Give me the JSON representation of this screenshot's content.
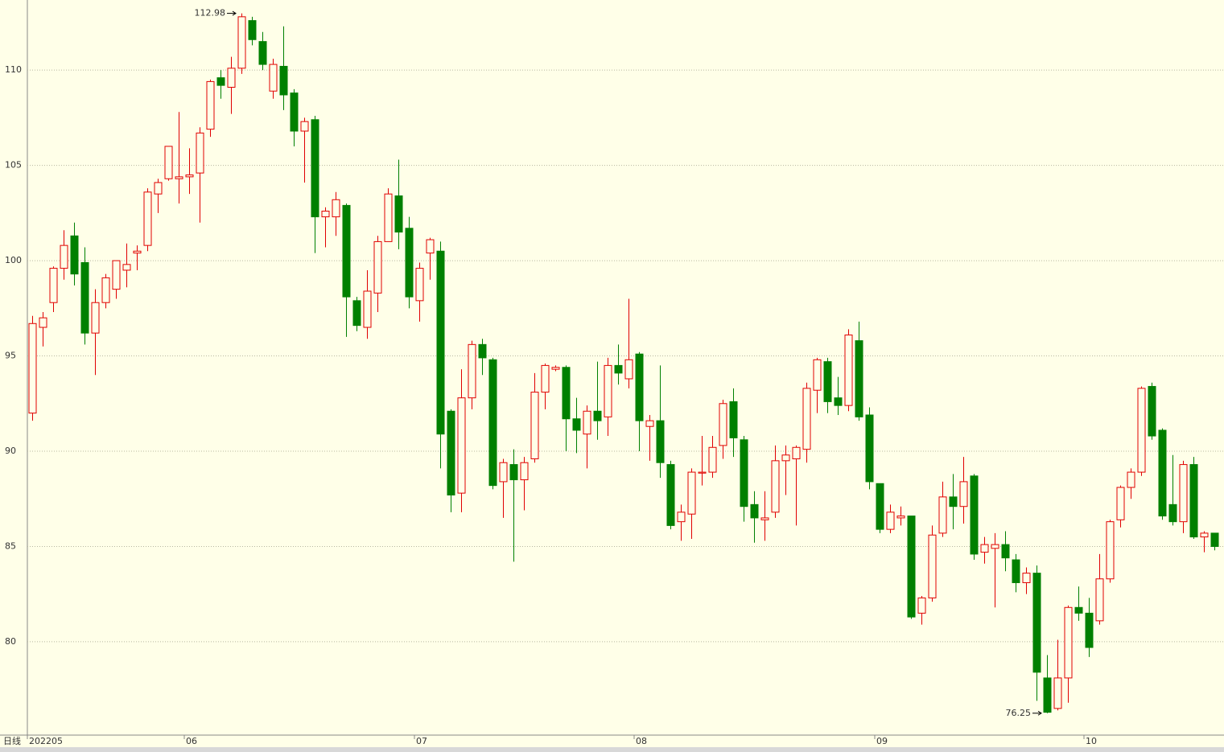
{
  "chart_data": {
    "type": "candlestick",
    "period_label": "日线",
    "categories": [
      "202205",
      null,
      null,
      null,
      null,
      null,
      null,
      null,
      null,
      null,
      null,
      null,
      null,
      null,
      null,
      "06",
      null,
      null,
      null,
      null,
      null,
      null,
      null,
      null,
      null,
      null,
      null,
      null,
      null,
      null,
      null,
      null,
      null,
      null,
      null,
      null,
      null,
      "07",
      null,
      null,
      null,
      null,
      null,
      null,
      null,
      null,
      null,
      null,
      null,
      null,
      null,
      null,
      null,
      null,
      null,
      null,
      null,
      null,
      "08",
      null,
      null,
      null,
      null,
      null,
      null,
      null,
      null,
      null,
      null,
      null,
      null,
      null,
      null,
      null,
      null,
      null,
      null,
      null,
      null,
      null,
      null,
      "09",
      null,
      null,
      null,
      null,
      null,
      null,
      null,
      null,
      null,
      null,
      null,
      null,
      null,
      null,
      null,
      null,
      null,
      null,
      null,
      "10",
      null,
      null,
      null,
      null,
      null,
      null,
      null,
      null,
      null,
      null,
      null,
      null
    ],
    "open": [
      92,
      96.5,
      97.8,
      99.6,
      101.3,
      99.9,
      96.2,
      97.8,
      98.5,
      99.5,
      100.4,
      100.8,
      103.5,
      104.3,
      104.3,
      104.4,
      104.6,
      106.9,
      109.6,
      109.1,
      110.1,
      112.6,
      111.5,
      108.9,
      110.2,
      108.8,
      106.8,
      107.4,
      102.3,
      102.3,
      102.9,
      97.9,
      96.5,
      98.3,
      101,
      103.4,
      101.7,
      97.9,
      100.4,
      100.5,
      92.1,
      87.8,
      92.8,
      95.6,
      94.8,
      88.4,
      89.3,
      88.5,
      89.6,
      93.1,
      94.3,
      94.4,
      91.7,
      90.9,
      92.1,
      91.8,
      94.5,
      93.8,
      95.1,
      91.3,
      91.6,
      89.3,
      86.3,
      86.7,
      88.85,
      88.9,
      90.3,
      92.6,
      90.6,
      87.2,
      86.4,
      86.8,
      89.5,
      89.6,
      90.1,
      93.2,
      94.7,
      92.8,
      92.4,
      95.8,
      91.9,
      88.3,
      85.9,
      86.5,
      86.6,
      81.5,
      82.3,
      85.7,
      87.6,
      87.1,
      88.7,
      84.7,
      84.9,
      85.1,
      84.3,
      83.1,
      83.6,
      78.1,
      76.5,
      78.1,
      81.8,
      81.5,
      81.1,
      83.3,
      86.4,
      88.1,
      88.9,
      93.4,
      91.1,
      87.2,
      86.3,
      89.3,
      85.5,
      85.7
    ],
    "high": [
      97.1,
      97.3,
      99.7,
      101.6,
      102,
      100.7,
      98.5,
      99.3,
      100,
      100.9,
      100.8,
      103.8,
      104.3,
      106,
      107.8,
      105.9,
      107,
      109.5,
      110,
      110.7,
      112.98,
      112.8,
      112,
      110.6,
      112.3,
      109,
      107.5,
      107.6,
      102.8,
      103.6,
      103,
      98.1,
      99.5,
      101.3,
      103.8,
      105.3,
      102.3,
      99.9,
      101.2,
      101,
      92.2,
      94.3,
      95.8,
      95.9,
      94.9,
      89.6,
      90.1,
      89.7,
      94.1,
      94.6,
      94.5,
      94.5,
      92.8,
      92.4,
      94.7,
      94.9,
      95.6,
      98,
      95.2,
      91.9,
      94.5,
      89.5,
      87.2,
      89.1,
      90.8,
      90.8,
      92.7,
      93.3,
      90.8,
      87.9,
      87.9,
      90.3,
      90.3,
      90.3,
      93.6,
      94.9,
      94.9,
      93.9,
      96.4,
      96.8,
      92.3,
      88.3,
      87.2,
      87.1,
      86.6,
      82.4,
      86.1,
      88.4,
      88.8,
      89.7,
      88.8,
      85.5,
      85.7,
      85.8,
      84.6,
      83.9,
      84,
      79.3,
      80.1,
      81.9,
      82.9,
      82.3,
      84.6,
      86.4,
      88.2,
      89.1,
      93.4,
      93.6,
      91.2,
      89.8,
      89.5,
      89.7,
      85.8,
      85.7
    ],
    "low": [
      91.6,
      95.5,
      97.3,
      99,
      98.7,
      95.6,
      94,
      97.5,
      98,
      98.6,
      99.5,
      100.5,
      102.5,
      104.2,
      103,
      103.5,
      102,
      106.5,
      108.5,
      107.7,
      109.8,
      111.3,
      110,
      108.5,
      107.9,
      106,
      104.1,
      100.4,
      100.7,
      101.3,
      96,
      96.3,
      95.9,
      97.3,
      101,
      100.6,
      97.5,
      96.8,
      99,
      89.1,
      86.8,
      86.8,
      92.2,
      94,
      88,
      86.5,
      84.2,
      86.9,
      89.4,
      92.2,
      94.2,
      90,
      89.9,
      89.1,
      90.6,
      90.8,
      93.5,
      93.3,
      90,
      89.5,
      88.6,
      85.9,
      85.3,
      85.4,
      88.2,
      88.6,
      89.6,
      89.7,
      86.3,
      85.2,
      85.3,
      86.5,
      87.7,
      86.1,
      89.4,
      92,
      92,
      91.9,
      92.1,
      91.6,
      88,
      85.7,
      85.7,
      86.1,
      81.2,
      80.9,
      82.1,
      85.5,
      85.9,
      86.2,
      84.3,
      84.1,
      81.8,
      83.7,
      82.6,
      82.5,
      76.9,
      76.25,
      76.4,
      76.8,
      81.1,
      79.2,
      80.9,
      83.1,
      86,
      87.5,
      88.7,
      90.6,
      86.4,
      86.1,
      85.7,
      85.4,
      84.7,
      84.8
    ],
    "close": [
      96.7,
      97,
      99.6,
      100.8,
      99.3,
      96.2,
      97.8,
      99.1,
      100,
      99.8,
      100.5,
      103.6,
      104.1,
      106,
      104.4,
      104.5,
      106.7,
      109.4,
      109.2,
      110.1,
      112.8,
      111.6,
      110.3,
      110.3,
      108.7,
      106.8,
      107.3,
      102.3,
      102.6,
      103.2,
      98.1,
      96.6,
      98.4,
      101,
      103.5,
      101.5,
      98.1,
      99.6,
      101.1,
      90.9,
      87.7,
      92.8,
      95.6,
      94.9,
      88.2,
      89.4,
      88.5,
      89.4,
      93.1,
      94.5,
      94.4,
      91.7,
      91.1,
      92.1,
      91.6,
      94.5,
      94.1,
      94.8,
      91.6,
      91.6,
      89.4,
      86.1,
      86.8,
      88.9,
      88.9,
      90.2,
      92.5,
      90.7,
      87.1,
      86.5,
      86.5,
      89.5,
      89.8,
      90.2,
      93.3,
      94.8,
      92.6,
      92.4,
      96.1,
      91.8,
      88.4,
      85.9,
      86.8,
      86.6,
      81.3,
      82.3,
      85.6,
      87.6,
      87.1,
      88.4,
      84.6,
      85.1,
      85.1,
      84.4,
      83.1,
      83.6,
      78.4,
      76.3,
      78.1,
      81.8,
      81.5,
      79.7,
      83.3,
      86.3,
      88.1,
      88.9,
      93.3,
      90.8,
      86.6,
      86.3,
      89.3,
      85.5,
      85.7,
      85
    ],
    "up_color": "#e00000",
    "down_color": "#008000",
    "ylim": [
      75.1,
      113.68
    ],
    "yticks": [
      80,
      85,
      90,
      95,
      100,
      105,
      110
    ],
    "grid": true,
    "annotations": [
      "112.98",
      "76.25"
    ]
  }
}
